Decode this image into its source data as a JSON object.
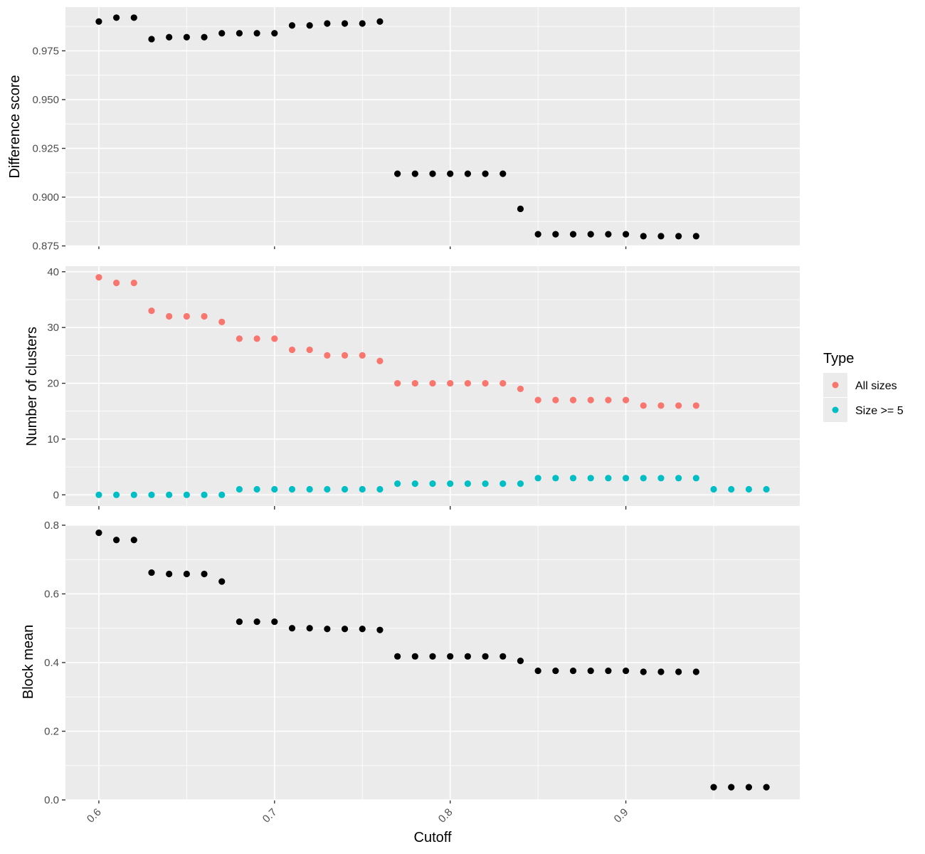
{
  "chart_data": {
    "type": "scatter",
    "xlabel": "Cutoff",
    "x_ticks": [
      {
        "value": 0.6,
        "label": "0.6"
      },
      {
        "value": 0.7,
        "label": "0.7"
      },
      {
        "value": 0.8,
        "label": "0.8"
      },
      {
        "value": 0.9,
        "label": "0.9"
      }
    ],
    "xlim": [
      0.581,
      0.999
    ],
    "legend": {
      "title": "Type",
      "placement": "right",
      "entries": [
        {
          "label": "All sizes",
          "color": "#F8766D"
        },
        {
          "label": "Size >= 5",
          "color": "#00BFC4"
        }
      ]
    },
    "panels": [
      {
        "ylabel": "Difference score",
        "ylim": [
          0.8752,
          0.9974
        ],
        "y_ticks": [
          {
            "value": 0.875,
            "label": "0.875"
          },
          {
            "value": 0.9,
            "label": "0.900"
          },
          {
            "value": 0.925,
            "label": "0.925"
          },
          {
            "value": 0.95,
            "label": "0.950"
          },
          {
            "value": 0.975,
            "label": "0.975"
          }
        ],
        "series": [
          {
            "color": "#000000",
            "x": [
              0.6,
              0.61,
              0.62,
              0.63,
              0.64,
              0.65,
              0.66,
              0.67,
              0.68,
              0.69,
              0.7,
              0.71,
              0.72,
              0.73,
              0.74,
              0.75,
              0.76,
              0.77,
              0.78,
              0.79,
              0.8,
              0.81,
              0.82,
              0.83,
              0.84,
              0.85,
              0.86,
              0.87,
              0.88,
              0.89,
              0.9,
              0.91,
              0.92,
              0.93,
              0.94
            ],
            "y": [
              0.99,
              0.992,
              0.992,
              0.981,
              0.982,
              0.982,
              0.982,
              0.984,
              0.984,
              0.984,
              0.984,
              0.988,
              0.988,
              0.989,
              0.989,
              0.989,
              0.99,
              0.912,
              0.912,
              0.912,
              0.912,
              0.912,
              0.912,
              0.912,
              0.894,
              0.881,
              0.881,
              0.881,
              0.881,
              0.881,
              0.881,
              0.88,
              0.88,
              0.88,
              0.88
            ]
          }
        ]
      },
      {
        "ylabel": "Number of clusters",
        "ylim": [
          -2,
          41
        ],
        "y_ticks": [
          {
            "value": 0,
            "label": "0"
          },
          {
            "value": 10,
            "label": "10"
          },
          {
            "value": 20,
            "label": "20"
          },
          {
            "value": 30,
            "label": "30"
          },
          {
            "value": 40,
            "label": "40"
          }
        ],
        "series": [
          {
            "name": "All sizes",
            "color": "#F8766D",
            "x": [
              0.6,
              0.61,
              0.62,
              0.63,
              0.64,
              0.65,
              0.66,
              0.67,
              0.68,
              0.69,
              0.7,
              0.71,
              0.72,
              0.73,
              0.74,
              0.75,
              0.76,
              0.77,
              0.78,
              0.79,
              0.8,
              0.81,
              0.82,
              0.83,
              0.84,
              0.85,
              0.86,
              0.87,
              0.88,
              0.89,
              0.9,
              0.91,
              0.92,
              0.93,
              0.94
            ],
            "y": [
              39,
              38,
              38,
              33,
              32,
              32,
              32,
              31,
              28,
              28,
              28,
              26,
              26,
              25,
              25,
              25,
              24,
              20,
              20,
              20,
              20,
              20,
              20,
              20,
              19,
              17,
              17,
              17,
              17,
              17,
              17,
              16,
              16,
              16,
              16
            ]
          },
          {
            "name": "Size >= 5",
            "color": "#00BFC4",
            "x": [
              0.6,
              0.61,
              0.62,
              0.63,
              0.64,
              0.65,
              0.66,
              0.67,
              0.68,
              0.69,
              0.7,
              0.71,
              0.72,
              0.73,
              0.74,
              0.75,
              0.76,
              0.77,
              0.78,
              0.79,
              0.8,
              0.81,
              0.82,
              0.83,
              0.84,
              0.85,
              0.86,
              0.87,
              0.88,
              0.89,
              0.9,
              0.91,
              0.92,
              0.93,
              0.94,
              0.95,
              0.96,
              0.97,
              0.98
            ],
            "y": [
              0,
              0,
              0,
              0,
              0,
              0,
              0,
              0,
              1,
              1,
              1,
              1,
              1,
              1,
              1,
              1,
              1,
              2,
              2,
              2,
              2,
              2,
              2,
              2,
              2,
              3,
              3,
              3,
              3,
              3,
              3,
              3,
              3,
              3,
              3,
              1,
              1,
              1,
              1
            ]
          }
        ]
      },
      {
        "ylabel": "Block mean",
        "ylim": [
          0,
          0.8
        ],
        "y_ticks": [
          {
            "value": 0.0,
            "label": "0.0"
          },
          {
            "value": 0.2,
            "label": "0.2"
          },
          {
            "value": 0.4,
            "label": "0.4"
          },
          {
            "value": 0.6,
            "label": "0.6"
          },
          {
            "value": 0.8,
            "label": "0.8"
          }
        ],
        "series": [
          {
            "color": "#000000",
            "x": [
              0.6,
              0.61,
              0.62,
              0.63,
              0.64,
              0.65,
              0.66,
              0.67,
              0.68,
              0.69,
              0.7,
              0.71,
              0.72,
              0.73,
              0.74,
              0.75,
              0.76,
              0.77,
              0.78,
              0.79,
              0.8,
              0.81,
              0.82,
              0.83,
              0.84,
              0.85,
              0.86,
              0.87,
              0.88,
              0.89,
              0.9,
              0.91,
              0.92,
              0.93,
              0.94,
              0.95,
              0.96,
              0.97,
              0.98
            ],
            "y": [
              0.778,
              0.757,
              0.757,
              0.662,
              0.658,
              0.658,
              0.658,
              0.636,
              0.519,
              0.519,
              0.519,
              0.5,
              0.5,
              0.498,
              0.498,
              0.498,
              0.495,
              0.418,
              0.418,
              0.418,
              0.418,
              0.418,
              0.418,
              0.418,
              0.405,
              0.376,
              0.376,
              0.376,
              0.376,
              0.376,
              0.376,
              0.373,
              0.373,
              0.373,
              0.373,
              0.037,
              0.037,
              0.037,
              0.037
            ]
          }
        ]
      }
    ]
  }
}
